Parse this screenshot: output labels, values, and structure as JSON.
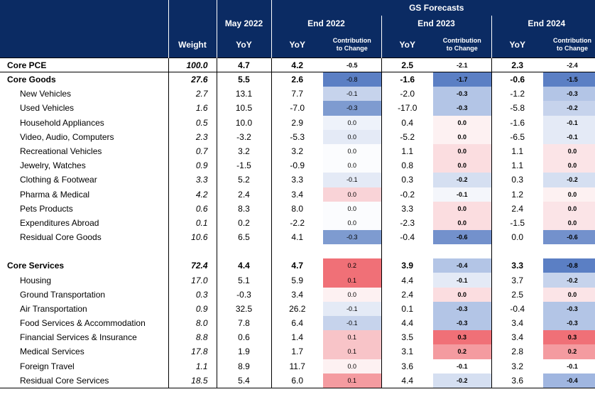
{
  "header": {
    "forecast_group": "GS Forecasts",
    "may2022": "May 2022",
    "end2022": "End 2022",
    "end2023": "End 2023",
    "end2024": "End 2024",
    "weight": "Weight",
    "yoy": "YoY",
    "contrib_line1": "Contribution",
    "contrib_line2": "to Change"
  },
  "rows": [
    {
      "name": "Core PCE",
      "weight": "100.0",
      "may": "4.7",
      "y22": "4.2",
      "c22": "-0.5",
      "y23": "2.5",
      "c23": "-2.1",
      "y24": "2.3",
      "c24": "-2.4",
      "style": "pce",
      "bg22": "#ffffff",
      "bg23": "#ffffff",
      "bg24": "#ffffff"
    },
    {
      "name": "Core Goods",
      "weight": "27.6",
      "may": "5.5",
      "y22": "2.6",
      "c22": "-0.8",
      "y23": "-1.6",
      "c23": "-1.7",
      "y24": "-0.6",
      "c24": "-1.5",
      "style": "bold",
      "bg22": "#5b7fc4",
      "bg23": "#5b7fc4",
      "bg24": "#5b7fc4"
    },
    {
      "name": "New Vehicles",
      "weight": "2.7",
      "may": "13.1",
      "y22": "7.7",
      "c22": "-0.1",
      "y23": "-2.0",
      "c23": "-0.3",
      "y24": "-1.2",
      "c24": "-0.3",
      "style": "sub",
      "bg22": "#c6d3ec",
      "bg23": "#b3c5e6",
      "bg24": "#b3c5e6"
    },
    {
      "name": "Used Vehicles",
      "weight": "1.6",
      "may": "10.5",
      "y22": "-7.0",
      "c22": "-0.3",
      "y23": "-17.0",
      "c23": "-0.3",
      "y24": "-5.8",
      "c24": "-0.2",
      "style": "sub",
      "bg22": "#7e9bd0",
      "bg23": "#b3c5e6",
      "bg24": "#c6d3ec"
    },
    {
      "name": "Household Appliances",
      "weight": "0.5",
      "may": "10.0",
      "y22": "2.9",
      "c22": "0.0",
      "y23": "0.4",
      "c23": "0.0",
      "y24": "-1.6",
      "c24": "-0.1",
      "style": "sub",
      "bg22": "#eef2fa",
      "bg23": "#fdf1f2",
      "bg24": "#e4eaf6"
    },
    {
      "name": "Video, Audio, Computers",
      "weight": "2.3",
      "may": "-3.2",
      "y22": "-5.3",
      "c22": "0.0",
      "y23": "-5.2",
      "c23": "0.0",
      "y24": "-6.5",
      "c24": "-0.1",
      "style": "sub",
      "bg22": "#e4eaf6",
      "bg23": "#fdf1f2",
      "bg24": "#e4eaf6"
    },
    {
      "name": "Recreational Vehicles",
      "weight": "0.7",
      "may": "3.2",
      "y22": "3.2",
      "c22": "0.0",
      "y23": "1.1",
      "c23": "0.0",
      "y24": "1.1",
      "c24": "0.0",
      "style": "sub",
      "bg22": "#fbfcfe",
      "bg23": "#fbdde0",
      "bg24": "#fbe4e7"
    },
    {
      "name": "Jewelry, Watches",
      "weight": "0.9",
      "may": "-1.5",
      "y22": "-0.9",
      "c22": "0.0",
      "y23": "0.8",
      "c23": "0.0",
      "y24": "1.1",
      "c24": "0.0",
      "style": "sub",
      "bg22": "#fbfcfe",
      "bg23": "#fbdde0",
      "bg24": "#fbe4e7"
    },
    {
      "name": "Clothing & Footwear",
      "weight": "3.3",
      "may": "5.2",
      "y22": "3.3",
      "c22": "-0.1",
      "y23": "0.3",
      "c23": "-0.2",
      "y24": "0.3",
      "c24": "-0.2",
      "style": "sub",
      "bg22": "#e4eaf6",
      "bg23": "#d5dff1",
      "bg24": "#d5dff1"
    },
    {
      "name": "Pharma & Medical",
      "weight": "4.2",
      "may": "2.4",
      "y22": "3.4",
      "c22": "0.0",
      "y23": "-0.2",
      "c23": "-0.1",
      "y24": "1.2",
      "c24": "0.0",
      "style": "sub",
      "bg22": "#f9d3d7",
      "bg23": "#f4f6fb",
      "bg24": "#fdf1f2"
    },
    {
      "name": "Pets Products",
      "weight": "0.6",
      "may": "8.3",
      "y22": "8.0",
      "c22": "0.0",
      "y23": "3.3",
      "c23": "0.0",
      "y24": "2.4",
      "c24": "0.0",
      "style": "sub",
      "bg22": "#fbfcfe",
      "bg23": "#fbdde0",
      "bg24": "#fbe4e7"
    },
    {
      "name": "Expenditures Abroad",
      "weight": "0.1",
      "may": "0.2",
      "y22": "-2.2",
      "c22": "0.0",
      "y23": "-2.3",
      "c23": "0.0",
      "y24": "-1.5",
      "c24": "0.0",
      "style": "sub",
      "bg22": "#fbfcfe",
      "bg23": "#fbdde0",
      "bg24": "#fbe4e7"
    },
    {
      "name": "Residual Core Goods",
      "weight": "10.6",
      "may": "6.5",
      "y22": "4.1",
      "c22": "-0.3",
      "y23": "-0.4",
      "c23": "-0.6",
      "y24": "0.0",
      "c24": "-0.6",
      "style": "sub",
      "bg22": "#7e9bd0",
      "bg23": "#7391cc",
      "bg24": "#7391cc"
    },
    {
      "name": "",
      "weight": "",
      "may": "",
      "y22": "",
      "c22": "",
      "y23": "",
      "c23": "",
      "y24": "",
      "c24": "",
      "style": "spacer",
      "bg22": "#ffffff",
      "bg23": "#ffffff",
      "bg24": "#ffffff"
    },
    {
      "name": "Core Services",
      "weight": "72.4",
      "may": "4.4",
      "y22": "4.7",
      "c22": "0.2",
      "y23": "3.9",
      "c23": "-0.4",
      "y24": "3.3",
      "c24": "-0.8",
      "style": "bold",
      "bg22": "#f07077",
      "bg23": "#b3c5e6",
      "bg24": "#5b7fc4"
    },
    {
      "name": "Housing",
      "weight": "17.0",
      "may": "5.1",
      "y22": "5.9",
      "c22": "0.1",
      "y23": "4.4",
      "c23": "-0.1",
      "y24": "3.7",
      "c24": "-0.2",
      "style": "sub",
      "bg22": "#f07077",
      "bg23": "#e4eaf6",
      "bg24": "#c6d3ec"
    },
    {
      "name": "Ground Transportation",
      "weight": "0.3",
      "may": "-0.3",
      "y22": "3.4",
      "c22": "0.0",
      "y23": "2.4",
      "c23": "0.0",
      "y24": "2.5",
      "c24": "0.0",
      "style": "sub",
      "bg22": "#fdf1f2",
      "bg23": "#fbdde0",
      "bg24": "#fbe4e7"
    },
    {
      "name": "Air Transportation",
      "weight": "0.9",
      "may": "32.5",
      "y22": "26.2",
      "c22": "-0.1",
      "y23": "0.1",
      "c23": "-0.3",
      "y24": "-0.4",
      "c24": "-0.3",
      "style": "sub",
      "bg22": "#e4eaf6",
      "bg23": "#b3c5e6",
      "bg24": "#b3c5e6"
    },
    {
      "name": "Food Services & Accommodation",
      "weight": "8.0",
      "may": "7.8",
      "y22": "6.4",
      "c22": "-0.1",
      "y23": "4.4",
      "c23": "-0.3",
      "y24": "3.4",
      "c24": "-0.3",
      "style": "sub",
      "bg22": "#c6d3ec",
      "bg23": "#b3c5e6",
      "bg24": "#b3c5e6"
    },
    {
      "name": "Financial Services & Insurance",
      "weight": "8.8",
      "may": "0.6",
      "y22": "1.4",
      "c22": "0.1",
      "y23": "3.5",
      "c23": "0.3",
      "y24": "3.4",
      "c24": "0.3",
      "style": "sub",
      "bg22": "#f8c4c8",
      "bg23": "#f07077",
      "bg24": "#f07077"
    },
    {
      "name": "Medical Services",
      "weight": "17.8",
      "may": "1.9",
      "y22": "1.7",
      "c22": "0.1",
      "y23": "3.1",
      "c23": "0.2",
      "y24": "2.8",
      "c24": "0.2",
      "style": "sub",
      "bg22": "#f8c4c8",
      "bg23": "#f49ba0",
      "bg24": "#f49ba0"
    },
    {
      "name": "Foreign Travel",
      "weight": "1.1",
      "may": "8.9",
      "y22": "11.7",
      "c22": "0.0",
      "y23": "3.6",
      "c23": "-0.1",
      "y24": "3.2",
      "c24": "-0.1",
      "style": "sub",
      "bg22": "#fdf1f2",
      "bg23": "#ffffff",
      "bg24": "#ffffff"
    },
    {
      "name": "Residual Core Services",
      "weight": "18.5",
      "may": "5.4",
      "y22": "6.0",
      "c22": "0.1",
      "y23": "4.4",
      "c23": "-0.2",
      "y24": "3.6",
      "c24": "-0.4",
      "style": "sub last",
      "bg22": "#f49ba0",
      "bg23": "#d5dff1",
      "bg24": "#a0b6e0"
    }
  ]
}
